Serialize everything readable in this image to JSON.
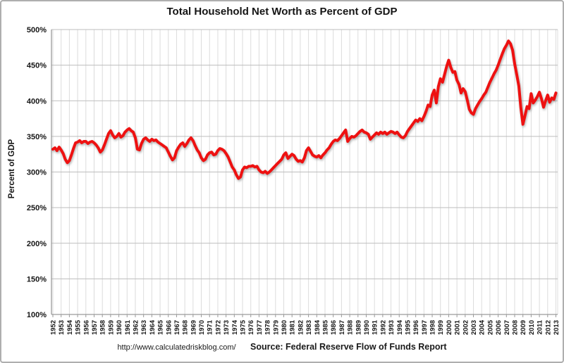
{
  "title": "Total Household Net Worth as Percent of GDP",
  "footer": {
    "url": "http://www.calculatedriskblog.com/",
    "source": "Source: Federal Reserve Flow of Funds Report"
  },
  "colors": {
    "line": "#ee1111",
    "grid_vertical": "#dcdcdc",
    "grid_horizontal": "#bdbdbd",
    "axis": "#9a9a9a",
    "text": "#151515",
    "background": "#ffffff",
    "frame_border": "#aeaeae"
  },
  "chart_data": {
    "type": "line",
    "title": "Total Household Net Worth as Percent of GDP",
    "xlabel": "",
    "ylabel": "Percent of GDP",
    "ylim": [
      100,
      500
    ],
    "ytick_step": 50,
    "ytick_labels": [
      "100%",
      "150%",
      "200%",
      "250%",
      "300%",
      "350%",
      "400%",
      "450%",
      "500%"
    ],
    "x_ticks": [
      1952,
      1953,
      1954,
      1955,
      1956,
      1957,
      1958,
      1959,
      1960,
      1961,
      1962,
      1963,
      1964,
      1965,
      1966,
      1967,
      1968,
      1969,
      1970,
      1971,
      1972,
      1973,
      1974,
      1975,
      1976,
      1977,
      1978,
      1979,
      1980,
      1981,
      1982,
      1983,
      1984,
      1985,
      1986,
      1987,
      1988,
      1989,
      1990,
      1991,
      1992,
      1993,
      1994,
      1995,
      1996,
      1997,
      1998,
      1999,
      2000,
      2001,
      2002,
      2003,
      2004,
      2005,
      2006,
      2007,
      2008,
      2009,
      2010,
      2011,
      2012,
      2013
    ],
    "grid": true,
    "legend_position": "none",
    "series": [
      {
        "name": "Household Net Worth as Percent of GDP",
        "frequency": "quarterly",
        "start_period": "1952Q1",
        "end_period": "2013Q1",
        "unit": "percent of GDP",
        "values": [
          332,
          334,
          330,
          335,
          331,
          326,
          318,
          313,
          316,
          324,
          333,
          341,
          342,
          344,
          341,
          343,
          343,
          340,
          342,
          343,
          341,
          338,
          334,
          328,
          331,
          338,
          346,
          354,
          358,
          352,
          348,
          350,
          354,
          349,
          351,
          356,
          359,
          361,
          358,
          356,
          348,
          332,
          331,
          340,
          346,
          348,
          345,
          343,
          346,
          344,
          345,
          342,
          340,
          338,
          336,
          334,
          328,
          322,
          317,
          320,
          330,
          335,
          339,
          341,
          336,
          340,
          345,
          348,
          344,
          337,
          331,
          327,
          320,
          316,
          318,
          324,
          327,
          328,
          324,
          325,
          330,
          333,
          332,
          330,
          326,
          321,
          314,
          307,
          303,
          296,
          291,
          293,
          303,
          307,
          306,
          308,
          308,
          309,
          307,
          308,
          303,
          300,
          299,
          301,
          298,
          300,
          303,
          306,
          309,
          312,
          315,
          318,
          324,
          327,
          319,
          322,
          325,
          323,
          318,
          315,
          316,
          314,
          320,
          330,
          334,
          329,
          324,
          322,
          321,
          323,
          320,
          324,
          327,
          331,
          334,
          339,
          343,
          345,
          344,
          347,
          351,
          355,
          359,
          343,
          347,
          350,
          349,
          351,
          354,
          357,
          359,
          356,
          355,
          353,
          346,
          349,
          352,
          355,
          353,
          356,
          354,
          356,
          353,
          355,
          357,
          356,
          354,
          356,
          352,
          349,
          348,
          351,
          357,
          361,
          365,
          369,
          373,
          371,
          375,
          372,
          378,
          385,
          394,
          392,
          408,
          415,
          397,
          420,
          431,
          426,
          437,
          448,
          457,
          447,
          440,
          441,
          429,
          423,
          411,
          417,
          413,
          401,
          388,
          383,
          381,
          389,
          394,
          399,
          403,
          408,
          412,
          419,
          426,
          432,
          438,
          443,
          450,
          458,
          466,
          473,
          478,
          484,
          480,
          471,
          452,
          437,
          421,
          390,
          367,
          379,
          392,
          389,
          410,
          397,
          401,
          406,
          412,
          403,
          391,
          400,
          408,
          398,
          404,
          402,
          411
        ]
      }
    ]
  }
}
